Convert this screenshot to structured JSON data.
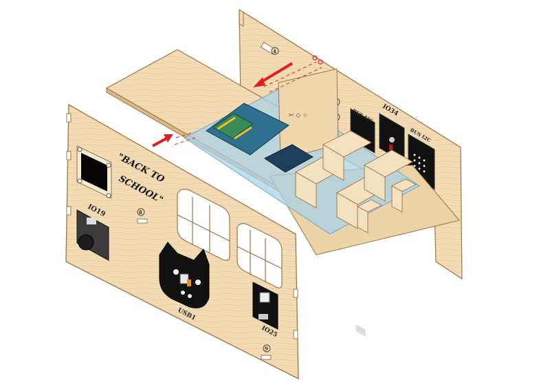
{
  "diagram": {
    "front_panel": {
      "slogan_line1": "\"BACK TO",
      "slogan_line2": "SCHOOL\"",
      "labels": {
        "speaker_module": "IO19",
        "cat_module": "USB1",
        "switch_module": "IO25"
      },
      "markers": [
        "8",
        "9"
      ]
    },
    "back_panel": {
      "labels": {
        "module_left": "BUS I2C",
        "module_middle": "IO34",
        "module_right": "BUS I2C"
      },
      "markers": [
        "4",
        "6",
        "7"
      ]
    },
    "colors": {
      "wood": "#f3dcb4",
      "wood_edge": "#b98a52",
      "acrylic": "#a9d3e8",
      "board": "#2f6f8f",
      "arrow": "#e02020",
      "module": "#111111"
    },
    "icons": [
      "assembly-arrow-icon",
      "cat-face-icon",
      "speaker-icon",
      "button-icon"
    ]
  }
}
